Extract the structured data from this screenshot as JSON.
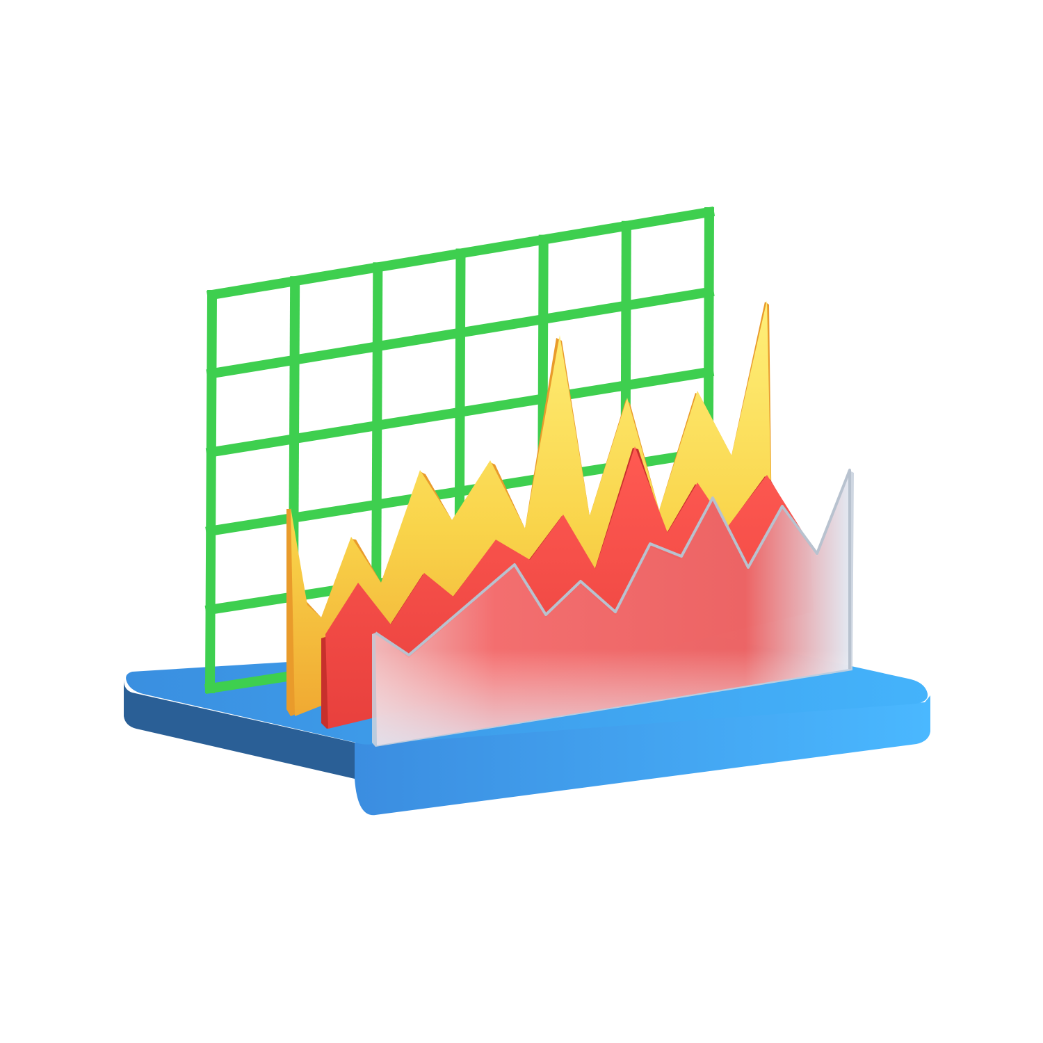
{
  "illustration": {
    "subject": "3d-area-chart-icon",
    "colors": {
      "background": "#ffffff",
      "grid": "#3ecf4f",
      "grid_dark": "#23a83a",
      "base_top": "#3fa9f5",
      "base_front": "#2b7fd0",
      "base_side": "#23659f",
      "back_area": "#f9d44a",
      "back_area_edge": "#f0a932",
      "middle_area": "#f24a46",
      "middle_area_edge": "#c9322f",
      "front_area": "#f07272",
      "front_area_glass": "#e8eef7"
    },
    "grid_columns": 6,
    "grid_rows": 5
  }
}
